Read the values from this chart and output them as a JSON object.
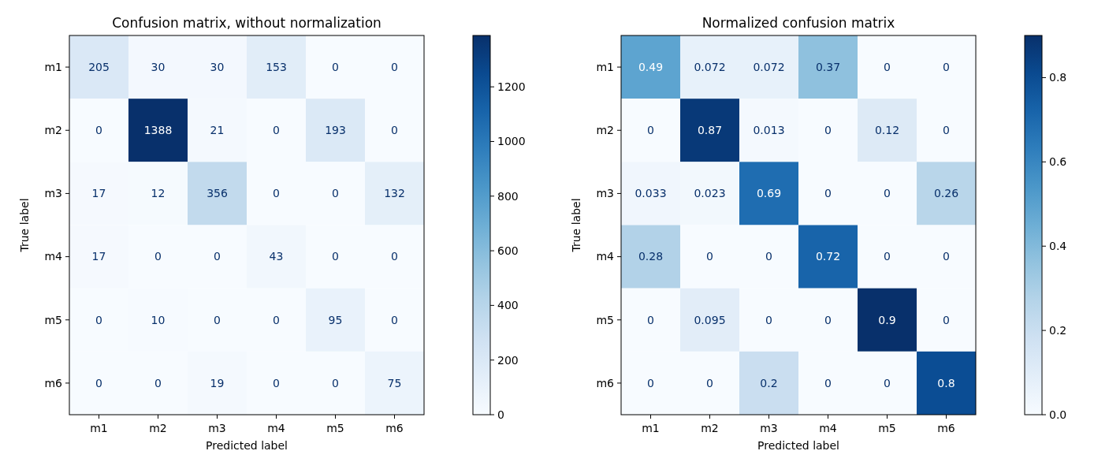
{
  "chart_data": [
    {
      "type": "heatmap",
      "title": "Confusion matrix, without normalization",
      "xlabel": "Predicted label",
      "ylabel": "True label",
      "categories": [
        "m1",
        "m2",
        "m3",
        "m4",
        "m5",
        "m6"
      ],
      "y_categories": [
        "m1",
        "m2",
        "m3",
        "m4",
        "m5",
        "m6"
      ],
      "cells": [
        [
          205,
          30,
          30,
          153,
          0,
          0
        ],
        [
          0,
          1388,
          21,
          0,
          193,
          0
        ],
        [
          17,
          12,
          356,
          0,
          0,
          132
        ],
        [
          17,
          0,
          0,
          43,
          0,
          0
        ],
        [
          0,
          10,
          0,
          0,
          95,
          0
        ],
        [
          0,
          0,
          19,
          0,
          0,
          75
        ]
      ],
      "clim": [
        0,
        1388
      ],
      "cticks": [
        0,
        200,
        400,
        600,
        800,
        1000,
        1200
      ],
      "data_labels": true
    },
    {
      "type": "heatmap",
      "title": "Normalized confusion matrix",
      "xlabel": "Predicted label",
      "ylabel": "True label",
      "categories": [
        "m1",
        "m2",
        "m3",
        "m4",
        "m5",
        "m6"
      ],
      "y_categories": [
        "m1",
        "m2",
        "m3",
        "m4",
        "m5",
        "m6"
      ],
      "cells": [
        [
          0.49,
          0.072,
          0.072,
          0.37,
          0,
          0
        ],
        [
          0,
          0.87,
          0.013,
          0,
          0.12,
          0
        ],
        [
          0.033,
          0.023,
          0.69,
          0,
          0,
          0.26
        ],
        [
          0.28,
          0,
          0,
          0.72,
          0,
          0
        ],
        [
          0,
          0.095,
          0,
          0,
          0.9,
          0
        ],
        [
          0,
          0,
          0.2,
          0,
          0,
          0.8
        ]
      ],
      "clim": [
        0,
        0.9
      ],
      "cticks": [
        {
          "value": 0,
          "label": "0.0"
        },
        {
          "value": 0.2,
          "label": "0.2"
        },
        {
          "value": 0.4,
          "label": "0.4"
        },
        {
          "value": 0.6,
          "label": "0.6"
        },
        {
          "value": 0.8,
          "label": "0.8"
        }
      ],
      "data_labels": true
    }
  ]
}
